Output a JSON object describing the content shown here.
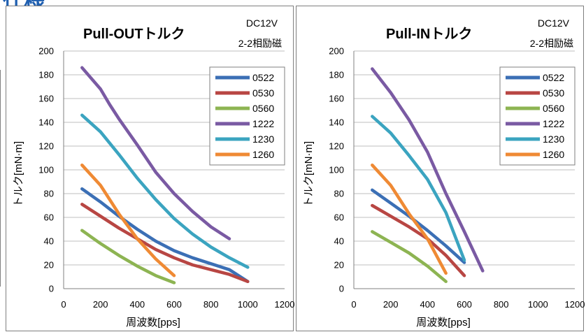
{
  "page": {
    "heading": "仕様"
  },
  "charts_meta": [
    {
      "title": "Pull-OUTトルク",
      "note1": "DC12V",
      "note2": "2-2相励磁"
    },
    {
      "title": "Pull-INトルク",
      "note1": "DC12V",
      "note2": "2-2相励磁"
    }
  ],
  "chart_data": [
    {
      "type": "line",
      "title": "Pull-OUTトルク",
      "xlabel": "周波数[pps]",
      "ylabel": "トルク[mN·m]",
      "xlim": [
        0,
        1200
      ],
      "ylim": [
        0,
        200
      ],
      "xticks": [
        0,
        200,
        400,
        600,
        800,
        1000,
        1200
      ],
      "yticks": [
        0,
        20,
        40,
        60,
        80,
        100,
        120,
        140,
        160,
        180,
        200
      ],
      "grid": true,
      "legend": "right",
      "series": [
        {
          "name": "0522",
          "color": "#3b6fb5",
          "points": [
            [
              100,
              84
            ],
            [
              200,
              73
            ],
            [
              300,
              61
            ],
            [
              400,
              50
            ],
            [
              500,
              40
            ],
            [
              600,
              32
            ],
            [
              700,
              26
            ],
            [
              800,
              21
            ],
            [
              900,
              16
            ],
            [
              1000,
              6
            ]
          ]
        },
        {
          "name": "0530",
          "color": "#b84643",
          "points": [
            [
              100,
              71
            ],
            [
              200,
              61
            ],
            [
              300,
              51
            ],
            [
              400,
              42
            ],
            [
              500,
              33
            ],
            [
              600,
              26
            ],
            [
              700,
              20
            ],
            [
              800,
              16
            ],
            [
              900,
              12
            ],
            [
              1000,
              6
            ]
          ]
        },
        {
          "name": "0560",
          "color": "#8db452",
          "points": [
            [
              100,
              49
            ],
            [
              200,
              38
            ],
            [
              300,
              28
            ],
            [
              400,
              19
            ],
            [
              500,
              11
            ],
            [
              600,
              5
            ]
          ]
        },
        {
          "name": "1222",
          "color": "#7a5aa3",
          "points": [
            [
              100,
              186
            ],
            [
              200,
              168
            ],
            [
              250,
              155
            ],
            [
              300,
              143
            ],
            [
              400,
              121
            ],
            [
              500,
              98
            ],
            [
              600,
              80
            ],
            [
              700,
              65
            ],
            [
              800,
              52
            ],
            [
              900,
              42
            ]
          ]
        },
        {
          "name": "1230",
          "color": "#3ba4c0",
          "points": [
            [
              100,
              146
            ],
            [
              200,
              132
            ],
            [
              300,
              113
            ],
            [
              400,
              93
            ],
            [
              500,
              75
            ],
            [
              600,
              59
            ],
            [
              700,
              46
            ],
            [
              800,
              35
            ],
            [
              900,
              26
            ],
            [
              1000,
              18
            ]
          ]
        },
        {
          "name": "1260",
          "color": "#ef8a34",
          "points": [
            [
              100,
              104
            ],
            [
              200,
              87
            ],
            [
              300,
              63
            ],
            [
              400,
              42
            ],
            [
              500,
              25
            ],
            [
              600,
              11
            ]
          ]
        }
      ]
    },
    {
      "type": "line",
      "title": "Pull-INトルク",
      "xlabel": "周波数[pps]",
      "ylabel": "トルク[mN·m]",
      "xlim": [
        0,
        1200
      ],
      "ylim": [
        0,
        200
      ],
      "xticks": [
        0,
        200,
        400,
        600,
        800,
        1000,
        1200
      ],
      "yticks": [
        0,
        20,
        40,
        60,
        80,
        100,
        120,
        140,
        160,
        180,
        200
      ],
      "grid": true,
      "legend": "right",
      "series": [
        {
          "name": "0522",
          "color": "#3b6fb5",
          "points": [
            [
              100,
              83
            ],
            [
              200,
              72
            ],
            [
              300,
              61
            ],
            [
              400,
              49
            ],
            [
              500,
              36
            ],
            [
              600,
              22
            ]
          ]
        },
        {
          "name": "0530",
          "color": "#b84643",
          "points": [
            [
              100,
              70
            ],
            [
              200,
              61
            ],
            [
              300,
              52
            ],
            [
              400,
              42
            ],
            [
              500,
              28
            ],
            [
              600,
              11
            ]
          ]
        },
        {
          "name": "0560",
          "color": "#8db452",
          "points": [
            [
              100,
              48
            ],
            [
              200,
              39
            ],
            [
              300,
              30
            ],
            [
              400,
              19
            ],
            [
              500,
              6
            ]
          ]
        },
        {
          "name": "1222",
          "color": "#7a5aa3",
          "points": [
            [
              100,
              185
            ],
            [
              200,
              165
            ],
            [
              300,
              142
            ],
            [
              400,
              115
            ],
            [
              500,
              80
            ],
            [
              600,
              48
            ],
            [
              700,
              15
            ]
          ]
        },
        {
          "name": "1230",
          "color": "#3ba4c0",
          "points": [
            [
              100,
              145
            ],
            [
              200,
              131
            ],
            [
              300,
              112
            ],
            [
              400,
              92
            ],
            [
              500,
              64
            ],
            [
              600,
              24
            ]
          ]
        },
        {
          "name": "1260",
          "color": "#ef8a34",
          "points": [
            [
              100,
              104
            ],
            [
              200,
              87
            ],
            [
              300,
              63
            ],
            [
              400,
              42
            ],
            [
              500,
              13
            ]
          ]
        }
      ]
    }
  ]
}
